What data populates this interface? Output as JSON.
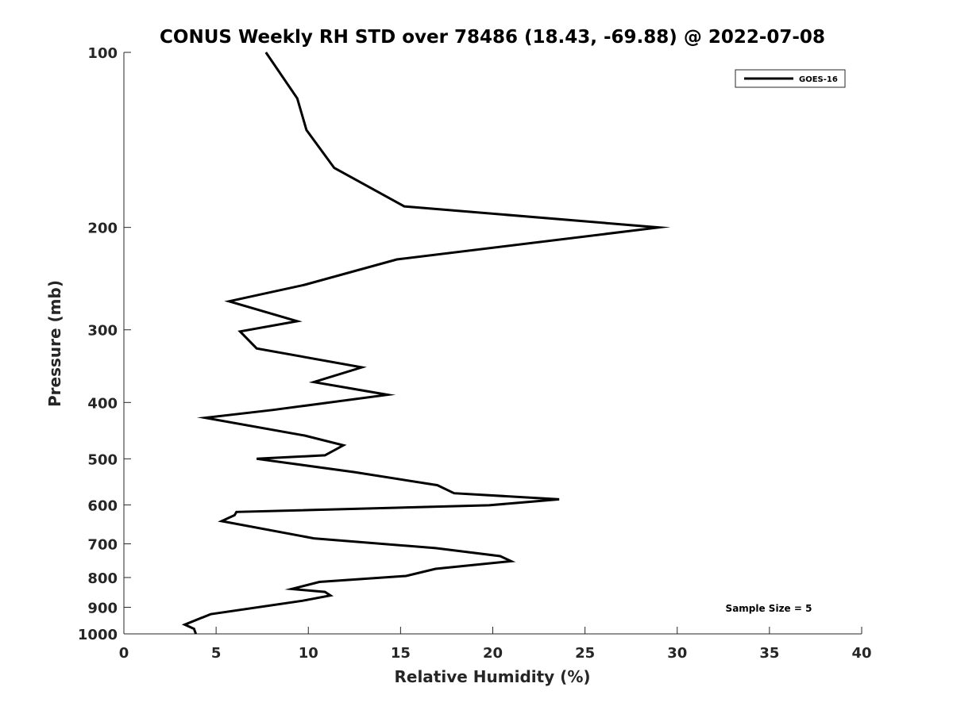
{
  "chart_data": {
    "type": "line",
    "title": "CONUS Weekly RH STD over 78486 (18.43, -69.88) @ 2022-07-08",
    "xlabel": "Relative Humidity (%)",
    "ylabel": "Pressure (mb)",
    "xlim": [
      0,
      40
    ],
    "ylim": [
      100,
      1000
    ],
    "y_scale": "log",
    "y_reversed": true,
    "grid": false,
    "legend_position": "top-right",
    "xticks": [
      0,
      5,
      10,
      15,
      20,
      25,
      30,
      35,
      40
    ],
    "yticks": [
      100,
      200,
      300,
      400,
      500,
      600,
      700,
      800,
      900,
      1000
    ],
    "annotation": "Sample Size = 5",
    "series": [
      {
        "name": "GOES-16",
        "color": "#000000",
        "x": [
          7.7,
          9.4,
          9.9,
          11.4,
          15.2,
          29.0,
          14.8,
          9.8,
          5.7,
          9.4,
          6.3,
          7.2,
          12.9,
          10.3,
          14.3,
          8.1,
          4.4,
          9.8,
          11.9,
          10.9,
          7.2,
          12.5,
          17.0,
          17.9,
          23.6,
          19.8,
          6.1,
          6.0,
          5.3,
          10.3,
          16.9,
          20.4,
          21.0,
          16.9,
          15.3,
          10.6,
          9.1,
          10.9,
          11.2,
          9.7,
          4.7,
          3.3,
          3.8,
          3.9
        ],
        "y": [
          100,
          120,
          136,
          158,
          184,
          200,
          227,
          251,
          268,
          290,
          302,
          323,
          348,
          369,
          388,
          412,
          425,
          456,
          474,
          493,
          500,
          527,
          555,
          573,
          587,
          601,
          617,
          625,
          640,
          685,
          712,
          735,
          750,
          773,
          795,
          814,
          837,
          847,
          859,
          877,
          925,
          964,
          980,
          1000
        ]
      }
    ]
  }
}
